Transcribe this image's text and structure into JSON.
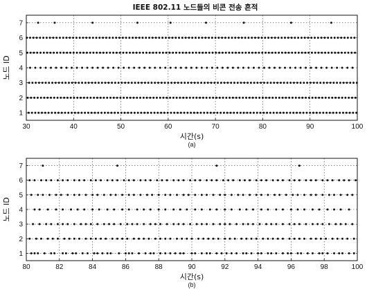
{
  "title": "IEEE 802.11 노드들의 비콘 전송 흔적",
  "chart_data": [
    {
      "type": "scatter",
      "panel_label": "(a)",
      "title": "IEEE 802.11 노드들의 비콘 전송 흔적",
      "xlabel": "시간(s)",
      "ylabel": "노드 ID",
      "xlim": [
        30,
        100
      ],
      "ylim": [
        0.5,
        7.5
      ],
      "xticks": [
        30,
        40,
        50,
        60,
        70,
        80,
        90,
        100
      ],
      "yticks": [
        1,
        2,
        3,
        4,
        5,
        6,
        7
      ],
      "grid": true,
      "series": [
        {
          "node": 1,
          "x": [
            30.5,
            31.2,
            31.9,
            32.6,
            33.3,
            34.0,
            34.7,
            35.4,
            36.1,
            36.8,
            37.5,
            38.2,
            38.9,
            39.6,
            40.3,
            41.0,
            41.7,
            42.4,
            43.1,
            43.8,
            44.5,
            45.2,
            45.9,
            46.6,
            47.3,
            48.0,
            48.7,
            49.4,
            50.1,
            50.8,
            51.5,
            52.2,
            52.9,
            53.6,
            54.3,
            55.0,
            55.7,
            56.4,
            57.1,
            57.8,
            58.5,
            59.2,
            59.9,
            60.6,
            61.3,
            62.0,
            62.7,
            63.4,
            64.1,
            64.8,
            65.5,
            66.2,
            66.9,
            67.6,
            68.3,
            69.0,
            69.7,
            70.4,
            71.1,
            71.8,
            72.5,
            73.2,
            73.9,
            74.6,
            75.3,
            76.0,
            76.7,
            77.4,
            78.1,
            78.8,
            79.5,
            80.2,
            80.9,
            81.6,
            82.3,
            83.0,
            83.7,
            84.4,
            85.1,
            85.8,
            86.5,
            87.2,
            87.9,
            88.6,
            89.3,
            90.0,
            90.7,
            91.4,
            92.1,
            92.8,
            93.5,
            94.2,
            94.9,
            95.6,
            96.3,
            97.0,
            97.7,
            98.4,
            99.1,
            99.8
          ]
        },
        {
          "node": 2,
          "x": [
            30.3,
            31.0,
            31.7,
            32.4,
            33.1,
            33.8,
            34.5,
            35.2,
            35.9,
            36.6,
            37.3,
            38.0,
            38.7,
            39.4,
            40.1,
            40.8,
            41.5,
            42.2,
            42.9,
            43.6,
            44.3,
            45.0,
            45.7,
            46.4,
            47.1,
            47.8,
            48.5,
            49.2,
            49.9,
            50.6,
            51.3,
            52.0,
            52.7,
            53.4,
            54.1,
            54.8,
            55.5,
            56.2,
            56.9,
            57.6,
            58.3,
            59.0,
            59.7,
            60.4,
            61.1,
            61.8,
            62.5,
            63.2,
            63.9,
            64.6,
            65.3,
            66.0,
            66.7,
            67.4,
            68.1,
            68.8,
            69.5,
            70.2,
            70.9,
            71.6,
            72.3,
            73.0,
            73.7,
            74.4,
            75.1,
            75.8,
            76.5,
            77.2,
            77.9,
            78.6,
            79.3,
            80.0,
            80.7,
            81.4,
            82.1,
            82.8,
            83.5,
            84.2,
            84.9,
            85.6,
            86.3,
            87.0,
            87.7,
            88.4,
            89.1,
            89.8,
            90.5,
            91.2,
            91.9,
            92.6,
            93.3,
            94.0,
            94.7,
            95.4,
            96.1,
            96.8,
            97.5,
            98.2,
            98.9,
            99.6
          ]
        },
        {
          "node": 3,
          "x": [
            30.6,
            31.3,
            32.0,
            32.7,
            33.4,
            34.1,
            34.8,
            35.5,
            36.2,
            36.9,
            37.6,
            38.3,
            39.0,
            39.7,
            40.4,
            41.1,
            41.8,
            42.5,
            43.2,
            43.9,
            44.6,
            45.3,
            46.0,
            46.7,
            47.4,
            48.1,
            48.8,
            49.5,
            50.2,
            50.9,
            51.6,
            52.3,
            53.0,
            53.7,
            54.4,
            55.1,
            55.8,
            56.5,
            57.2,
            57.9,
            58.6,
            59.3,
            60.0,
            60.7,
            61.4,
            62.1,
            62.8,
            63.5,
            64.2,
            64.9,
            65.6,
            66.3,
            67.0,
            67.7,
            68.4,
            69.1,
            69.8,
            70.5,
            71.2,
            71.9,
            72.6,
            73.3,
            74.0,
            74.7,
            75.4,
            76.1,
            76.8,
            77.5,
            78.2,
            78.9,
            79.6,
            80.3,
            81.0,
            81.7,
            82.4,
            83.1,
            83.8,
            84.5,
            85.2,
            85.9,
            86.6,
            87.3,
            88.0,
            88.7,
            89.4,
            90.1,
            90.8,
            91.5,
            92.2,
            92.9,
            93.6,
            94.3,
            95.0,
            95.7,
            96.4,
            97.1,
            97.8,
            98.5,
            99.2,
            99.9
          ]
        },
        {
          "node": 4,
          "x": [
            30.8,
            31.9,
            33.0,
            34.1,
            35.2,
            36.3,
            37.4,
            38.5,
            39.6,
            40.7,
            41.8,
            42.9,
            44.0,
            45.1,
            46.2,
            47.3,
            48.4,
            49.5,
            50.6,
            51.7,
            52.8,
            53.9,
            55.0,
            56.1,
            57.2,
            58.3,
            59.4,
            60.5,
            61.6,
            62.7,
            63.8,
            64.9,
            66.0,
            67.1,
            68.2,
            69.3,
            70.4,
            71.5,
            72.6,
            73.7,
            74.8,
            75.9,
            77.0,
            78.1,
            79.2,
            80.3,
            81.4,
            82.5,
            83.6,
            84.7,
            85.8,
            86.9,
            88.0,
            89.1,
            90.2,
            91.3,
            92.4,
            93.5,
            94.6,
            95.7,
            96.8,
            97.9,
            99.0
          ]
        },
        {
          "node": 5,
          "x": [
            30.2,
            30.9,
            31.6,
            32.3,
            33.0,
            33.7,
            34.4,
            35.1,
            35.8,
            36.5,
            37.2,
            37.9,
            38.6,
            39.3,
            40.0,
            40.7,
            41.4,
            42.1,
            42.8,
            43.5,
            44.2,
            44.9,
            45.6,
            46.3,
            47.0,
            47.7,
            48.4,
            49.1,
            49.8,
            50.5,
            51.2,
            51.9,
            52.6,
            53.3,
            54.0,
            54.7,
            55.4,
            56.1,
            56.8,
            57.5,
            58.2,
            58.9,
            59.6,
            60.3,
            61.0,
            61.7,
            62.4,
            63.1,
            63.8,
            64.5,
            65.2,
            65.9,
            66.6,
            67.3,
            68.0,
            68.7,
            69.4,
            70.1,
            70.8,
            71.5,
            72.2,
            72.9,
            73.6,
            74.3,
            75.0,
            75.7,
            76.4,
            77.1,
            77.8,
            78.5,
            79.2,
            79.9,
            80.6,
            81.3,
            82.0,
            82.7,
            83.4,
            84.1,
            84.8,
            85.5,
            86.2,
            86.9,
            87.6,
            88.3,
            89.0,
            89.7,
            90.4,
            91.1,
            91.8,
            92.5,
            93.2,
            93.9,
            94.6,
            95.3,
            96.0,
            96.7,
            97.4,
            98.1,
            98.8,
            99.5
          ]
        },
        {
          "node": 6,
          "x": [
            30.1,
            30.8,
            31.5,
            32.2,
            32.9,
            33.6,
            34.3,
            35.0,
            35.7,
            36.4,
            37.1,
            37.8,
            38.5,
            39.2,
            39.9,
            40.6,
            41.3,
            42.0,
            42.7,
            43.4,
            44.1,
            44.8,
            45.5,
            46.2,
            46.9,
            47.6,
            48.3,
            49.0,
            49.7,
            50.4,
            51.1,
            51.8,
            52.5,
            53.2,
            53.9,
            54.6,
            55.3,
            56.0,
            56.7,
            57.4,
            58.1,
            58.8,
            59.5,
            60.2,
            60.9,
            61.6,
            62.3,
            63.0,
            63.7,
            64.4,
            65.1,
            65.8,
            66.5,
            67.2,
            67.9,
            68.6,
            69.3,
            70.0,
            70.7,
            71.4,
            72.1,
            72.8,
            73.5,
            74.2,
            74.9,
            75.6,
            76.3,
            77.0,
            77.7,
            78.4,
            79.1,
            79.8,
            80.5,
            81.2,
            81.9,
            82.6,
            83.3,
            84.0,
            84.7,
            85.4,
            86.1,
            86.8,
            87.5,
            88.2,
            88.9,
            89.6,
            90.3,
            91.0,
            91.7,
            92.4,
            93.1,
            93.8,
            94.5,
            95.2,
            95.9,
            96.6,
            97.3,
            98.0,
            98.7,
            99.4
          ]
        },
        {
          "node": 7,
          "x": [
            32.5,
            36.0,
            44.0,
            53.5,
            60.5,
            68.0,
            76.0,
            86.0,
            94.5
          ]
        }
      ]
    },
    {
      "type": "scatter",
      "panel_label": "(b)",
      "title": "",
      "xlabel": "시간(s)",
      "ylabel": "노드 ID",
      "xlim": [
        80,
        100
      ],
      "ylim": [
        0.5,
        7.5
      ],
      "xticks": [
        80,
        82,
        84,
        86,
        88,
        90,
        92,
        94,
        96,
        98,
        100
      ],
      "yticks": [
        1,
        2,
        3,
        4,
        5,
        6,
        7
      ],
      "grid": true,
      "series": [
        {
          "node": 1,
          "x": [
            80.3,
            80.5,
            80.7,
            81.1,
            81.5,
            81.7,
            82.2,
            82.4,
            82.8,
            83.0,
            83.4,
            83.7,
            84.1,
            84.3,
            84.6,
            84.9,
            85.1,
            85.6,
            86.0,
            86.2,
            86.4,
            86.8,
            87.2,
            87.5,
            87.7,
            88.1,
            88.4,
            88.7,
            89.0,
            89.3,
            89.5,
            90.0,
            90.2,
            90.6,
            90.9,
            91.1,
            91.5,
            91.8,
            92.1,
            92.4,
            92.7,
            93.1,
            93.3,
            93.6,
            94.0,
            94.2,
            94.6,
            94.8,
            95.1,
            95.5,
            95.8,
            96.0,
            96.4,
            96.6,
            97.0,
            97.3,
            97.7,
            97.9,
            98.2,
            98.6,
            98.9,
            99.1,
            99.5,
            99.8
          ]
        },
        {
          "node": 2,
          "x": [
            80.2,
            80.6,
            80.9,
            81.3,
            81.6,
            81.9,
            82.3,
            82.6,
            82.9,
            83.2,
            83.6,
            83.9,
            84.2,
            84.5,
            84.8,
            85.2,
            85.5,
            85.8,
            86.1,
            86.5,
            86.8,
            87.1,
            87.4,
            87.8,
            88.1,
            88.4,
            88.7,
            89.1,
            89.4,
            89.7,
            90.0,
            90.4,
            90.7,
            91.0,
            91.3,
            91.6,
            92.0,
            92.3,
            92.6,
            93.0,
            93.3,
            93.6,
            93.9,
            94.3,
            94.6,
            94.9,
            95.2,
            95.5,
            95.9,
            96.2,
            96.5,
            96.8,
            97.2,
            97.5,
            97.8,
            98.1,
            98.5,
            98.8,
            99.1,
            99.4,
            99.8
          ]
        },
        {
          "node": 3,
          "x": [
            80.4,
            80.8,
            81.2,
            81.5,
            81.9,
            82.2,
            82.5,
            82.9,
            83.3,
            83.6,
            83.9,
            84.3,
            84.7,
            85.0,
            85.3,
            85.7,
            86.1,
            86.4,
            86.7,
            87.1,
            87.5,
            87.8,
            88.1,
            88.5,
            88.9,
            89.2,
            89.5,
            89.9,
            90.3,
            90.6,
            90.9,
            91.3,
            91.7,
            92.0,
            92.3,
            92.7,
            93.1,
            93.4,
            93.7,
            94.1,
            94.5,
            94.8,
            95.1,
            95.5,
            95.9,
            96.2,
            96.5,
            96.9,
            97.3,
            97.6,
            97.9,
            98.3,
            98.7,
            99.0,
            99.3,
            99.7
          ]
        },
        {
          "node": 4,
          "x": [
            80.5,
            80.8,
            81.3,
            81.8,
            82.2,
            82.7,
            83.1,
            83.5,
            84.0,
            84.4,
            84.9,
            85.3,
            85.8,
            86.2,
            86.7,
            87.1,
            87.5,
            88.0,
            88.4,
            88.9,
            89.3,
            89.7,
            90.2,
            90.6,
            91.1,
            91.5,
            92.0,
            92.4,
            92.9,
            93.3,
            93.7,
            94.2,
            94.6,
            95.1,
            95.5,
            96.0,
            96.4,
            96.8,
            97.3,
            97.7,
            98.2,
            98.6,
            99.0,
            99.5
          ]
        },
        {
          "node": 5,
          "x": [
            80.3,
            80.7,
            81.0,
            81.4,
            81.8,
            82.1,
            82.5,
            82.9,
            83.2,
            83.6,
            84.0,
            84.3,
            84.7,
            85.1,
            85.4,
            85.8,
            86.2,
            86.5,
            86.9,
            87.3,
            87.6,
            88.0,
            88.4,
            88.7,
            89.1,
            89.5,
            89.8,
            90.2,
            90.6,
            90.9,
            91.3,
            91.7,
            92.0,
            92.4,
            92.8,
            93.1,
            93.5,
            93.9,
            94.2,
            94.6,
            95.0,
            95.3,
            95.7,
            96.1,
            96.4,
            96.8,
            97.2,
            97.5,
            97.9,
            98.3,
            98.6,
            99.0,
            99.4,
            99.7
          ]
        },
        {
          "node": 6,
          "x": [
            80.2,
            80.5,
            80.9,
            81.2,
            81.5,
            81.9,
            82.2,
            82.5,
            82.9,
            83.2,
            83.5,
            83.9,
            84.2,
            84.5,
            84.9,
            85.2,
            85.5,
            85.9,
            86.2,
            86.5,
            86.9,
            87.2,
            87.5,
            87.9,
            88.2,
            88.5,
            88.9,
            89.2,
            89.5,
            89.9,
            90.2,
            90.5,
            90.9,
            91.2,
            91.5,
            91.9,
            92.2,
            92.5,
            92.9,
            93.2,
            93.5,
            93.9,
            94.2,
            94.5,
            94.9,
            95.2,
            95.5,
            95.9,
            96.2,
            96.5,
            96.9,
            97.2,
            97.5,
            97.9,
            98.2,
            98.5,
            98.9,
            99.2,
            99.5,
            99.9
          ]
        },
        {
          "node": 7,
          "x": [
            81.0,
            85.5,
            91.5,
            96.5
          ]
        }
      ]
    }
  ]
}
